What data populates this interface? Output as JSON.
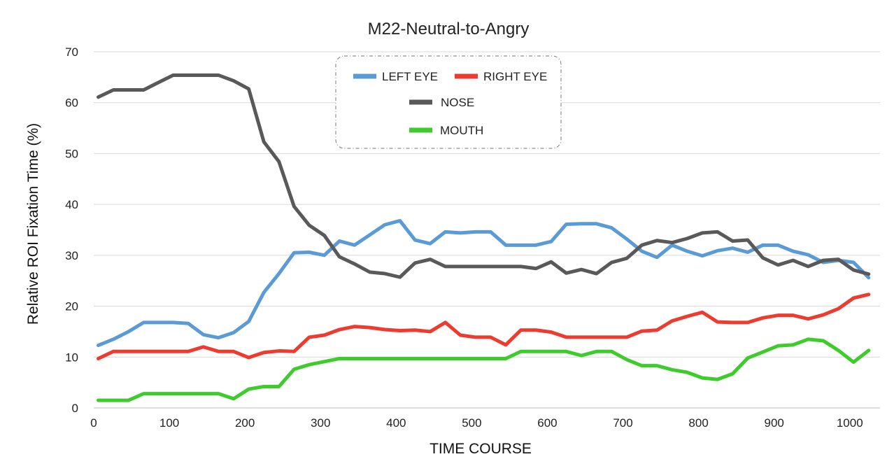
{
  "chart_data": {
    "type": "line",
    "title": "M22-Neutral-to-Angry",
    "xlabel": "TIME  COURSE",
    "ylabel": "Relative  ROI  Fixation  Time  (%)",
    "xlim": [
      0,
      1040
    ],
    "ylim": [
      0,
      70
    ],
    "xticks": [
      0,
      100,
      200,
      300,
      400,
      500,
      600,
      700,
      800,
      900,
      1000
    ],
    "yticks": [
      0,
      10,
      20,
      30,
      40,
      50,
      60,
      70
    ],
    "grid": "horizontal",
    "legend": "top-center",
    "x": [
      6,
      26,
      46,
      66,
      86,
      105,
      125,
      145,
      165,
      185,
      205,
      225,
      245,
      265,
      285,
      305,
      325,
      345,
      365,
      385,
      405,
      425,
      445,
      465,
      485,
      505,
      525,
      545,
      565,
      585,
      605,
      625,
      645,
      665,
      685,
      705,
      725,
      745,
      765,
      785,
      805,
      825,
      845,
      865,
      885,
      905,
      925,
      945,
      965,
      985,
      1005,
      1025
    ],
    "series": [
      {
        "name": "LEFT EYE",
        "color": "#5b9bd5",
        "values": [
          12.3,
          13.5,
          15.0,
          16.8,
          16.8,
          16.8,
          16.6,
          14.4,
          13.8,
          14.8,
          17.0,
          22.7,
          26.4,
          30.5,
          30.6,
          30.0,
          32.8,
          32.0,
          34.0,
          36.0,
          36.8,
          33.0,
          32.3,
          34.6,
          34.4,
          34.6,
          34.6,
          32.0,
          32.0,
          32.0,
          32.7,
          36.1,
          36.2,
          36.2,
          35.4,
          33.2,
          30.8,
          29.6,
          32.0,
          30.8,
          29.9,
          30.9,
          31.4,
          30.6,
          32.0,
          32.0,
          30.8,
          30.1,
          28.6,
          29.0,
          28.6,
          25.6
        ]
      },
      {
        "name": "RIGHT EYE",
        "color": "#ee3b2f",
        "values": [
          9.7,
          11.1,
          11.1,
          11.1,
          11.1,
          11.1,
          11.1,
          12.0,
          11.1,
          11.1,
          9.9,
          10.9,
          11.2,
          11.1,
          13.9,
          14.3,
          15.4,
          16.0,
          15.8,
          15.4,
          15.2,
          15.3,
          15.0,
          16.8,
          14.3,
          13.9,
          13.9,
          12.4,
          15.3,
          15.3,
          14.9,
          13.9,
          13.9,
          13.9,
          13.9,
          13.9,
          15.1,
          15.3,
          17.1,
          18.0,
          18.8,
          16.9,
          16.8,
          16.8,
          17.7,
          18.2,
          18.2,
          17.5,
          18.3,
          19.5,
          21.6,
          22.3
        ]
      },
      {
        "name": "NOSE",
        "color": "#595959",
        "values": [
          61.1,
          62.5,
          62.5,
          62.5,
          64.0,
          65.4,
          65.4,
          65.4,
          65.4,
          64.3,
          62.7,
          52.3,
          48.4,
          39.6,
          35.9,
          33.9,
          29.7,
          28.3,
          26.7,
          26.4,
          25.7,
          28.5,
          29.2,
          27.8,
          27.8,
          27.8,
          27.8,
          27.8,
          27.8,
          27.4,
          28.7,
          26.5,
          27.2,
          26.4,
          28.6,
          29.4,
          32.0,
          32.9,
          32.5,
          33.3,
          34.4,
          34.6,
          32.8,
          33.0,
          29.5,
          28.1,
          29.0,
          27.8,
          29.0,
          29.2,
          27.1,
          26.3
        ]
      },
      {
        "name": "MOUTH",
        "color": "#3dcc2b",
        "values": [
          1.5,
          1.5,
          1.5,
          2.8,
          2.8,
          2.8,
          2.8,
          2.8,
          2.8,
          1.8,
          3.7,
          4.2,
          4.2,
          7.6,
          8.5,
          9.1,
          9.7,
          9.7,
          9.7,
          9.7,
          9.7,
          9.7,
          9.7,
          9.7,
          9.7,
          9.7,
          9.7,
          9.7,
          11.1,
          11.1,
          11.1,
          11.1,
          10.3,
          11.1,
          11.1,
          9.5,
          8.3,
          8.3,
          7.5,
          7.0,
          5.9,
          5.6,
          6.7,
          9.8,
          11.0,
          12.2,
          12.4,
          13.5,
          13.2,
          11.3,
          9.0,
          11.3
        ]
      }
    ],
    "legend_layout": [
      [
        "LEFT EYE",
        "RIGHT EYE"
      ],
      [
        "NOSE"
      ],
      [
        "MOUTH"
      ]
    ]
  }
}
